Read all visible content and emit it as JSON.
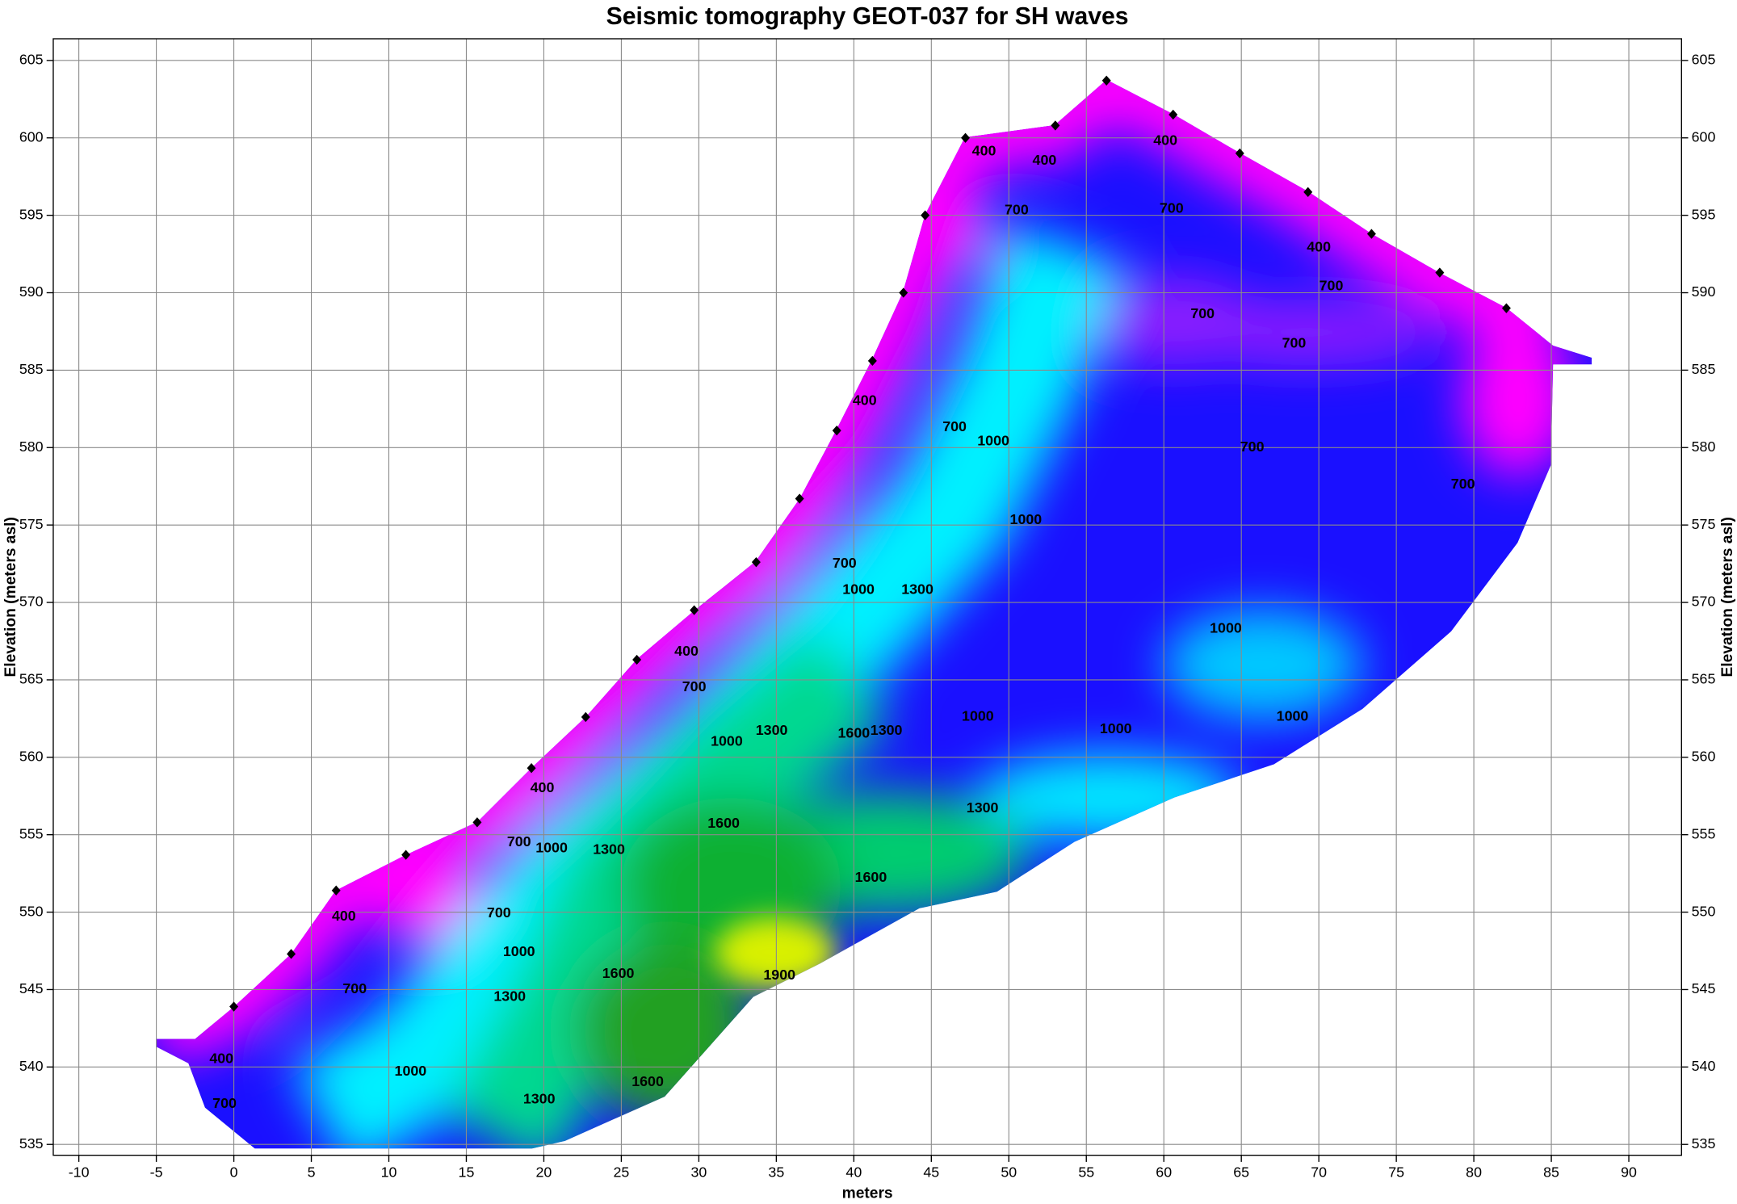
{
  "chart_data": {
    "type": "contour",
    "title": "Seismic tomography GEOT-037 for SH waves",
    "x_label": "meters",
    "y_label": "Elevation (meters asl)",
    "xlim": [
      -11.65,
      93.4
    ],
    "ylim": [
      534.3,
      606.4
    ],
    "xticks": [
      -10,
      -5,
      0,
      5,
      10,
      15,
      20,
      25,
      30,
      35,
      40,
      45,
      50,
      55,
      60,
      65,
      70,
      75,
      80,
      85,
      90
    ],
    "yticks": [
      535,
      540,
      545,
      550,
      555,
      560,
      565,
      570,
      575,
      580,
      585,
      590,
      595,
      600,
      605
    ],
    "grid": true,
    "geophones": {
      "color": "#000000",
      "x": [
        0,
        3.7,
        6.6,
        11.1,
        15.7,
        19.2,
        22.7,
        26,
        29.7,
        33.7,
        36.5,
        38.9,
        41.2,
        43.2,
        44.6,
        47.2,
        53,
        56.3,
        60.6,
        64.9,
        69.3,
        73.4,
        77.8,
        82.1
      ],
      "y": [
        543.9,
        547.3,
        551.4,
        553.7,
        555.8,
        559.3,
        562.6,
        566.3,
        569.5,
        572.6,
        576.7,
        581.1,
        585.6,
        590,
        595,
        600,
        600.8,
        603.7,
        601.5,
        599,
        596.5,
        593.8,
        591.3,
        589
      ]
    },
    "contour_labels": {
      "x": [
        48.4,
        52.3,
        60.1,
        50.5,
        60.5,
        70.0,
        70.8,
        62.5,
        68.4,
        65.7,
        79.3,
        40.7,
        46.5,
        49.0,
        51.1,
        39.4,
        40.3,
        44.1,
        29.2,
        29.7,
        64.0,
        68.3,
        48.0,
        56.9,
        31.8,
        34.7,
        40.0,
        42.1,
        19.9,
        48.3,
        18.4,
        20.5,
        24.2,
        31.6,
        41.1,
        7.1,
        17.1,
        18.4,
        17.8,
        24.8,
        35.2,
        7.8,
        -0.8,
        11.4,
        -0.6,
        19.7,
        26.7
      ],
      "y": [
        599.1,
        598.5,
        599.8,
        595.3,
        595.4,
        592.9,
        590.4,
        588.6,
        586.7,
        580.0,
        577.6,
        583.0,
        581.3,
        580.4,
        575.3,
        572.5,
        570.8,
        570.8,
        566.8,
        564.5,
        568.3,
        562.6,
        562.6,
        561.8,
        561.0,
        561.7,
        561.5,
        561.7,
        558.0,
        556.7,
        554.5,
        554.1,
        554.0,
        555.7,
        552.2,
        549.7,
        549.9,
        547.4,
        544.5,
        546.0,
        545.9,
        545.0,
        540.5,
        539.7,
        537.6,
        537.9,
        539.0
      ],
      "values": [
        400,
        400,
        400,
        700,
        700,
        400,
        700,
        700,
        700,
        700,
        700,
        400,
        700,
        1000,
        1000,
        700,
        1000,
        1300,
        400,
        700,
        1000,
        1000,
        1000,
        1000,
        1000,
        1300,
        1600,
        1300,
        400,
        1300,
        700,
        1000,
        1300,
        1600,
        1600,
        400,
        700,
        1000,
        1300,
        1600,
        1900,
        700,
        400,
        1000,
        700,
        1300,
        1600
      ]
    }
  }
}
